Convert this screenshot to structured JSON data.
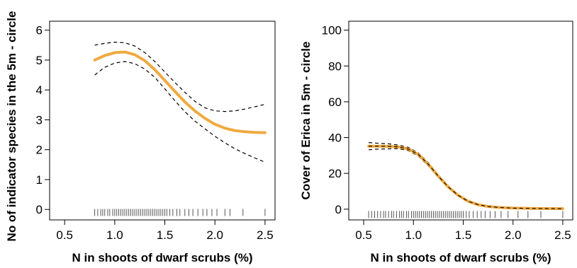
{
  "chart_data": [
    {
      "type": "line",
      "xlabel": "N in shoots of dwarf scrubs (%)",
      "ylabel": "No of indicator species in the 5m - circle",
      "xlim": [
        0.35,
        2.6
      ],
      "ylim": [
        -0.35,
        6.3
      ],
      "xticks": [
        0.5,
        1.0,
        1.5,
        2.0,
        2.5
      ],
      "xtick_labels": [
        "0.5",
        "1.0",
        "1.5",
        "2.0",
        "2.5"
      ],
      "yticks": [
        0,
        1,
        2,
        3,
        4,
        5,
        6
      ],
      "ytick_labels": [
        "0",
        "1",
        "2",
        "3",
        "4",
        "5",
        "6"
      ],
      "grid": false,
      "colors": {
        "fit": "#f0a940",
        "ci": "#000000",
        "rug": "#555555"
      },
      "series": [
        {
          "role": "fit",
          "x": [
            0.8,
            0.9,
            1.0,
            1.1,
            1.2,
            1.3,
            1.4,
            1.5,
            1.6,
            1.7,
            1.8,
            1.9,
            2.0,
            2.1,
            2.2,
            2.3,
            2.4,
            2.5
          ],
          "y": [
            5.0,
            5.15,
            5.25,
            5.27,
            5.18,
            4.98,
            4.68,
            4.32,
            3.95,
            3.6,
            3.3,
            3.05,
            2.85,
            2.72,
            2.64,
            2.6,
            2.58,
            2.57
          ]
        },
        {
          "role": "upper",
          "x": [
            0.8,
            0.9,
            1.0,
            1.1,
            1.2,
            1.3,
            1.4,
            1.5,
            1.6,
            1.7,
            1.8,
            1.9,
            2.0,
            2.1,
            2.2,
            2.3,
            2.4,
            2.5
          ],
          "y": [
            5.5,
            5.56,
            5.6,
            5.58,
            5.47,
            5.25,
            4.95,
            4.6,
            4.25,
            3.92,
            3.62,
            3.4,
            3.3,
            3.28,
            3.3,
            3.36,
            3.44,
            3.52
          ]
        },
        {
          "role": "lower",
          "x": [
            0.8,
            0.9,
            1.0,
            1.1,
            1.2,
            1.3,
            1.4,
            1.5,
            1.6,
            1.7,
            1.8,
            1.9,
            2.0,
            2.1,
            2.2,
            2.3,
            2.4,
            2.5
          ],
          "y": [
            4.5,
            4.76,
            4.9,
            4.95,
            4.88,
            4.7,
            4.42,
            4.04,
            3.64,
            3.27,
            2.96,
            2.7,
            2.45,
            2.23,
            2.03,
            1.87,
            1.72,
            1.58
          ]
        }
      ],
      "rug_y": -0.1,
      "rug_x": [
        0.8,
        0.83,
        0.86,
        0.88,
        0.9,
        0.93,
        0.95,
        0.98,
        1.0,
        1.02,
        1.04,
        1.06,
        1.08,
        1.1,
        1.12,
        1.14,
        1.16,
        1.18,
        1.2,
        1.22,
        1.24,
        1.26,
        1.28,
        1.3,
        1.32,
        1.34,
        1.36,
        1.38,
        1.4,
        1.42,
        1.44,
        1.46,
        1.48,
        1.5,
        1.52,
        1.55,
        1.58,
        1.62,
        1.65,
        1.7,
        1.74,
        1.78,
        1.83,
        1.88,
        1.92,
        1.97,
        2.02,
        2.1,
        2.15,
        2.28,
        2.5
      ]
    },
    {
      "type": "line",
      "xlabel": "N in shoots of dwarf scrubs (%)",
      "ylabel": "Cover of Erica in 5m - circle",
      "xlim": [
        0.35,
        2.6
      ],
      "ylim": [
        -6,
        105
      ],
      "xticks": [
        0.5,
        1.0,
        1.5,
        2.0,
        2.5
      ],
      "xtick_labels": [
        "0.5",
        "1.0",
        "1.5",
        "2.0",
        "2.5"
      ],
      "yticks": [
        0,
        20,
        40,
        60,
        80,
        100
      ],
      "ytick_labels": [
        "0",
        "20",
        "40",
        "60",
        "80",
        "100"
      ],
      "grid": false,
      "colors": {
        "fit": "#f0a940",
        "ci": "#000000",
        "rug": "#555555"
      },
      "series": [
        {
          "role": "fit",
          "x": [
            0.55,
            0.65,
            0.75,
            0.85,
            0.95,
            1.05,
            1.15,
            1.25,
            1.35,
            1.45,
            1.55,
            1.65,
            1.75,
            1.85,
            2.0,
            2.2,
            2.5
          ],
          "y": [
            35.2,
            35.2,
            35.1,
            34.8,
            33.6,
            30.5,
            25.0,
            18.4,
            12.4,
            7.7,
            4.4,
            2.5,
            1.5,
            1.0,
            0.6,
            0.4,
            0.3
          ]
        },
        {
          "role": "upper",
          "x": [
            0.55,
            0.65,
            0.75,
            0.85,
            0.95,
            1.05,
            1.15,
            1.25,
            1.35,
            1.45,
            1.55,
            1.65,
            1.75,
            1.85,
            2.0,
            2.2,
            2.5
          ],
          "y": [
            37.2,
            36.8,
            36.5,
            35.8,
            34.5,
            31.4,
            25.9,
            19.2,
            13.0,
            8.2,
            4.8,
            2.9,
            1.9,
            1.3,
            0.9,
            0.7,
            0.6
          ]
        },
        {
          "role": "lower",
          "x": [
            0.55,
            0.65,
            0.75,
            0.85,
            0.95,
            1.05,
            1.15,
            1.25,
            1.35,
            1.45,
            1.55,
            1.65,
            1.75,
            1.85,
            2.0,
            2.2,
            2.5
          ],
          "y": [
            33.2,
            33.6,
            33.7,
            33.8,
            32.7,
            29.6,
            24.1,
            17.6,
            11.8,
            7.2,
            4.0,
            2.1,
            1.1,
            0.7,
            0.3,
            0.1,
            0.0
          ]
        }
      ],
      "rug_y": -3,
      "rug_x": [
        0.55,
        0.58,
        0.61,
        0.64,
        0.67,
        0.7,
        0.72,
        0.75,
        0.78,
        0.8,
        0.83,
        0.86,
        0.88,
        0.9,
        0.93,
        0.95,
        0.98,
        1.0,
        1.02,
        1.04,
        1.06,
        1.08,
        1.1,
        1.12,
        1.14,
        1.16,
        1.18,
        1.2,
        1.22,
        1.24,
        1.26,
        1.28,
        1.3,
        1.32,
        1.34,
        1.36,
        1.38,
        1.4,
        1.42,
        1.44,
        1.46,
        1.48,
        1.5,
        1.53,
        1.56,
        1.6,
        1.64,
        1.68,
        1.72,
        1.77,
        1.82,
        1.88,
        1.95,
        2.05,
        2.15,
        2.28,
        2.5
      ]
    }
  ]
}
